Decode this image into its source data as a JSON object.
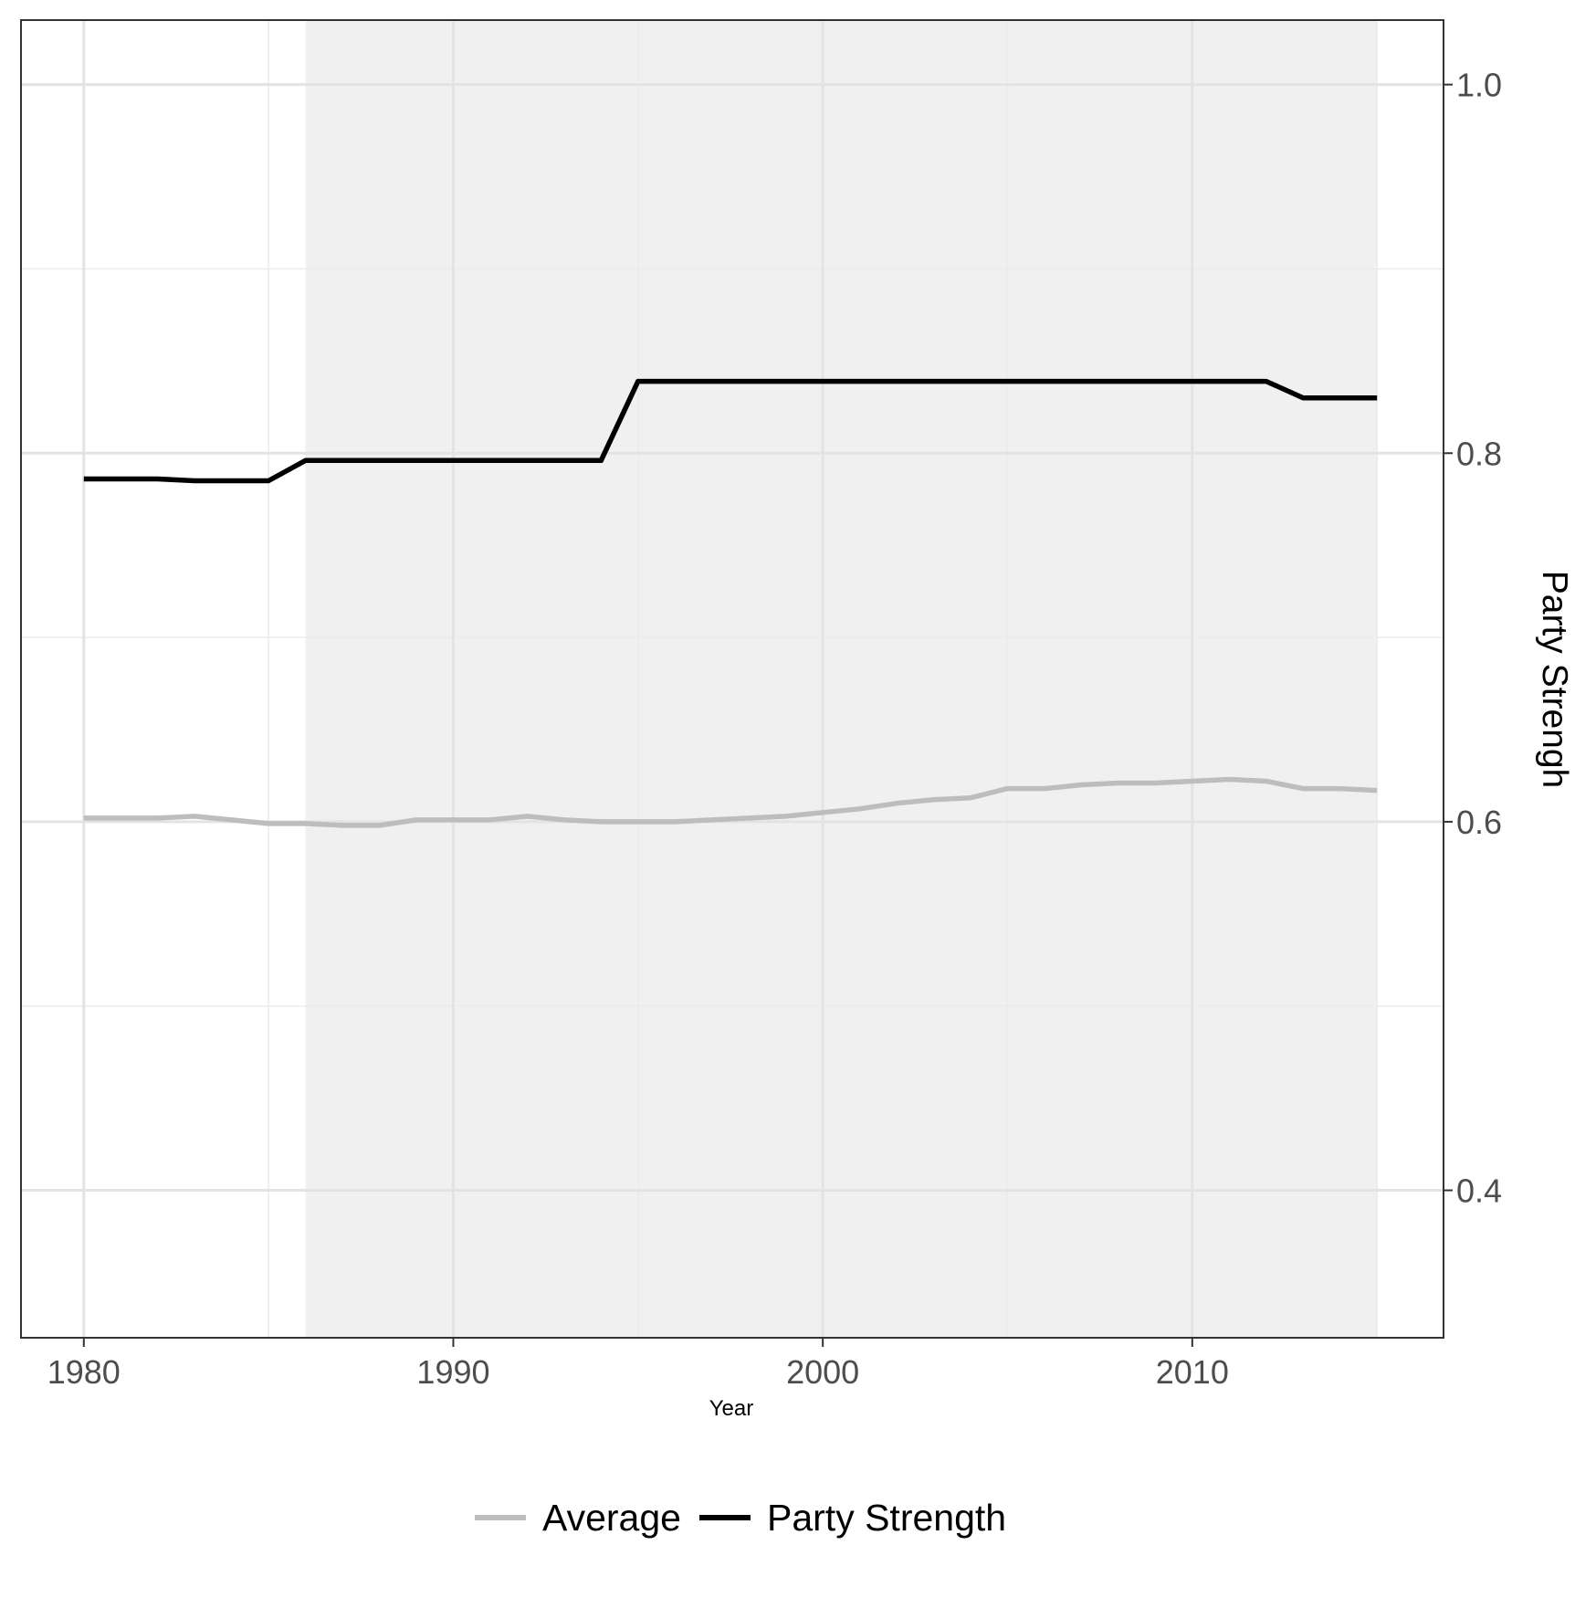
{
  "chart_data": {
    "type": "line",
    "title": "",
    "xlabel": "Year",
    "ylabel": "Party Strengh",
    "y_axis_position": "right",
    "xlim": [
      1978.3,
      2016.8
    ],
    "ylim": [
      0.32,
      1.035
    ],
    "x_ticks": [
      1980,
      1990,
      2000,
      2010
    ],
    "x_tick_labels": [
      "1980",
      "1990",
      "2000",
      "2010"
    ],
    "y_ticks": [
      0.4,
      0.6,
      0.8,
      1.0
    ],
    "y_tick_labels": [
      "0.4",
      "0.6",
      "0.8",
      "1.0"
    ],
    "y_minor_ticks": [
      0.5,
      0.7,
      0.9
    ],
    "x_minor_ticks": [
      1985,
      1995,
      2005,
      2015
    ],
    "grid": true,
    "legend_position": "bottom",
    "shaded_region": {
      "x_start": 1986,
      "x_end": 2015,
      "color": "#f0f0f0"
    },
    "x": [
      1980,
      1981,
      1982,
      1983,
      1984,
      1985,
      1986,
      1987,
      1988,
      1989,
      1990,
      1991,
      1992,
      1993,
      1994,
      1995,
      1996,
      1997,
      1998,
      1999,
      2000,
      2001,
      2002,
      2003,
      2004,
      2005,
      2006,
      2007,
      2008,
      2009,
      2010,
      2011,
      2012,
      2013,
      2014,
      2015
    ],
    "series": [
      {
        "name": "Average",
        "color": "#bdbdbd",
        "values": [
          0.602,
          0.602,
          0.602,
          0.603,
          0.601,
          0.599,
          0.599,
          0.598,
          0.598,
          0.601,
          0.601,
          0.601,
          0.603,
          0.601,
          0.6,
          0.6,
          0.6,
          0.601,
          0.602,
          0.603,
          0.605,
          0.607,
          0.61,
          0.612,
          0.613,
          0.618,
          0.618,
          0.62,
          0.621,
          0.621,
          0.622,
          0.623,
          0.622,
          0.618,
          0.618,
          0.617
        ]
      },
      {
        "name": "Party Strength",
        "color": "#000000",
        "values": [
          0.786,
          0.786,
          0.786,
          0.785,
          0.785,
          0.785,
          0.796,
          0.796,
          0.796,
          0.796,
          0.796,
          0.796,
          0.796,
          0.796,
          0.796,
          0.839,
          0.839,
          0.839,
          0.839,
          0.839,
          0.839,
          0.839,
          0.839,
          0.839,
          0.839,
          0.839,
          0.839,
          0.839,
          0.839,
          0.839,
          0.839,
          0.839,
          0.839,
          0.83,
          0.83,
          0.83
        ]
      }
    ]
  }
}
